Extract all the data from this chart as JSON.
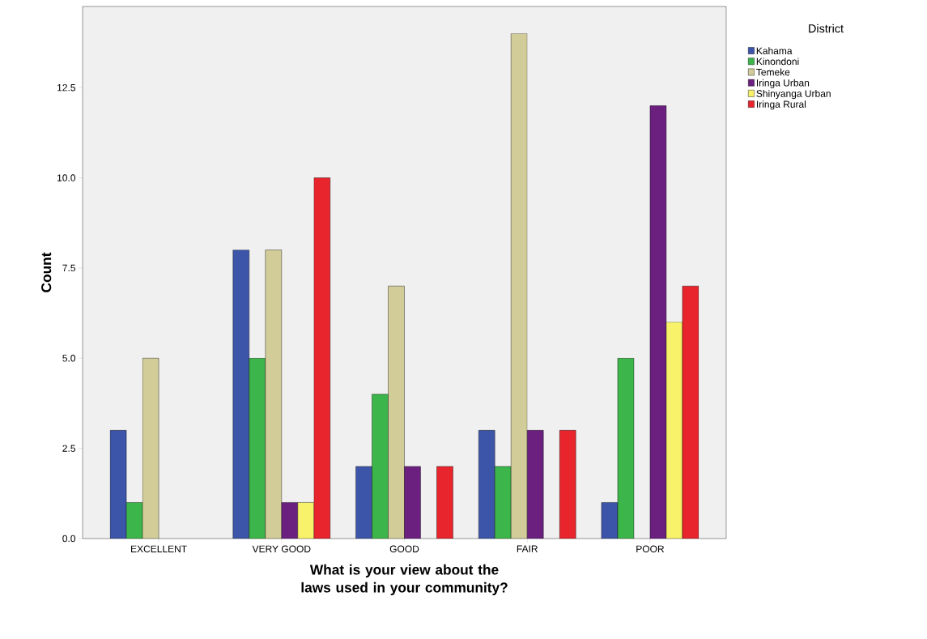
{
  "chart_data": {
    "type": "bar",
    "xlabel": "What is your view about the laws used in your community?",
    "ylabel": "Count",
    "legend_title": "District",
    "legend": "top right",
    "categories": [
      "EXCELLENT",
      "VERY GOOD",
      "GOOD",
      "FAIR",
      "POOR"
    ],
    "series": [
      {
        "name": "Kahama",
        "color": "#3d55a8",
        "values": [
          3,
          8,
          2,
          3,
          1
        ]
      },
      {
        "name": "Kinondoni",
        "color": "#3cb54a",
        "values": [
          1,
          5,
          4,
          2,
          5
        ]
      },
      {
        "name": "Temeke",
        "color": "#d1cc98",
        "values": [
          5,
          8,
          7,
          14,
          null
        ]
      },
      {
        "name": "Iringa Urban",
        "color": "#6b2080",
        "values": [
          null,
          1,
          2,
          3,
          12
        ]
      },
      {
        "name": "Shinyanga Urban",
        "color": "#f8f26a",
        "values": [
          null,
          1,
          null,
          null,
          6
        ]
      },
      {
        "name": "Iringa Rural",
        "color": "#e8242c",
        "values": [
          null,
          10,
          2,
          3,
          7
        ]
      }
    ],
    "ylim": [
      0,
      14.75
    ],
    "yticks": [
      {
        "value": 0,
        "label": "0.0"
      },
      {
        "value": 2.5,
        "label": "2.5"
      },
      {
        "value": 5,
        "label": "5.0"
      },
      {
        "value": 7.5,
        "label": "7.5"
      },
      {
        "value": 10,
        "label": "10.0"
      },
      {
        "value": 12.5,
        "label": "12.5"
      }
    ],
    "grid": false
  }
}
